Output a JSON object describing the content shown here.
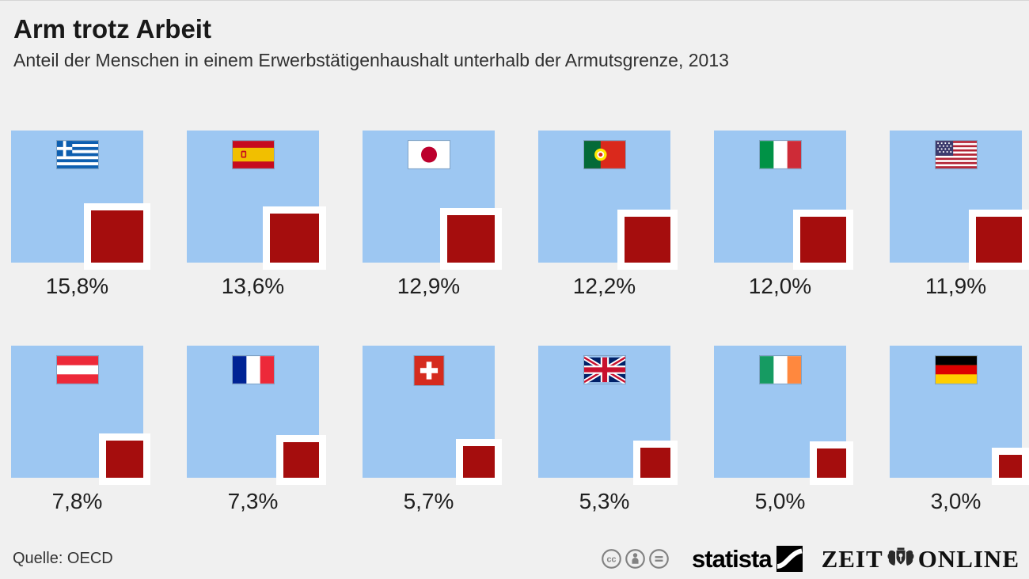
{
  "header": {
    "title": "Arm trotz Arbeit",
    "subtitle": "Anteil der Menschen in einem Erwerbstätigenhaushalt unterhalb der Armutsgrenze, 2013"
  },
  "chart_data": {
    "type": "bar",
    "variant": "proportional-area-squares",
    "title": "Arm trotz Arbeit",
    "subtitle": "Anteil der Menschen in einem Erwerbstätigenhaushalt unterhalb der Armutsgrenze, 2013",
    "unit": "%",
    "categories": [
      "Greece",
      "Spain",
      "Japan",
      "Portugal",
      "Italy",
      "United States",
      "Austria",
      "France",
      "Switzerland",
      "United Kingdom",
      "Ireland",
      "Germany"
    ],
    "flags": [
      "greece",
      "spain",
      "japan",
      "portugal",
      "italy",
      "usa",
      "austria",
      "france",
      "switzerland",
      "uk",
      "ireland",
      "germany"
    ],
    "values": [
      15.8,
      13.6,
      12.9,
      12.2,
      12.0,
      11.9,
      7.8,
      7.3,
      5.7,
      5.3,
      5.0,
      3.0
    ],
    "labels": [
      "15,8%",
      "13,6%",
      "12,9%",
      "12,2%",
      "12,0%",
      "11,9%",
      "7,8%",
      "7,3%",
      "5,7%",
      "5,3%",
      "5,0%",
      "3,0%"
    ],
    "layout": {
      "rows": 2,
      "columns": 6,
      "legend": "none",
      "grid": "off"
    }
  },
  "footer": {
    "source": "Quelle: OECD",
    "license_icons": [
      "cc-icon",
      "cc-by-icon",
      "cc-nd-icon"
    ],
    "statista_label": "statista",
    "zeit_label": "ZEIT",
    "online_label": "ONLINE"
  },
  "colors": {
    "background": "#f0f0f0",
    "base_square": "#9dc7f2",
    "share_square": "#a50d0d",
    "share_square_border": "#ffffff",
    "text": "#1f1f1f",
    "license_icon": "#828282"
  }
}
